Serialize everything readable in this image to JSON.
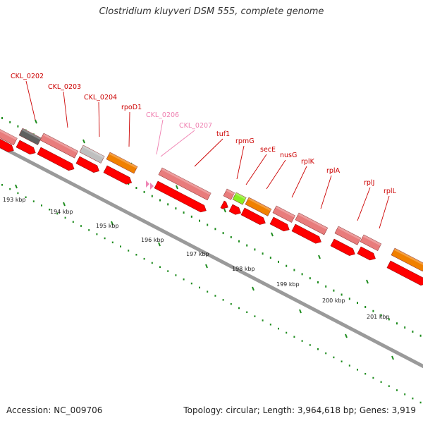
{
  "title": "Clostridium kluyveri DSM 555, complete genome",
  "footer": {
    "accession": "Accession: NC_009706",
    "topology": "Topology: circular; Length: 3,964,618 bp; Genes: 3,919"
  },
  "colors": {
    "label_red": "#cc0000",
    "label_pink": "#ef7fb0",
    "gene_red": "#ff0000",
    "gene_pink": "#e87c7c",
    "gene_orange": "#f08000",
    "gene_gray": "#bfbfbf",
    "gene_dark": "#606060",
    "gene_green": "#88ee22",
    "tick_green": "#1e8c1e",
    "backbone": "#9a9a9a"
  },
  "gene_labels": [
    {
      "name": "CKL_0202",
      "style": "red"
    },
    {
      "name": "CKL_0203",
      "style": "red"
    },
    {
      "name": "CKL_0204",
      "style": "red"
    },
    {
      "name": "rpoD1",
      "style": "red"
    },
    {
      "name": "CKL_0206",
      "style": "pink"
    },
    {
      "name": "CKL_0207",
      "style": "pink"
    },
    {
      "name": "tuf1",
      "style": "red"
    },
    {
      "name": "rpmG",
      "style": "red"
    },
    {
      "name": "secE",
      "style": "red"
    },
    {
      "name": "nusG",
      "style": "red"
    },
    {
      "name": "rplK",
      "style": "red"
    },
    {
      "name": "rplA",
      "style": "red"
    },
    {
      "name": "rplJ",
      "style": "red"
    },
    {
      "name": "rplL",
      "style": "red"
    }
  ],
  "kbp_marks": [
    "193 kbp",
    "194 kbp",
    "195 kbp",
    "196 kbp",
    "197 kbp",
    "198 kbp",
    "199 kbp",
    "200 kbp",
    "201 kbp"
  ]
}
